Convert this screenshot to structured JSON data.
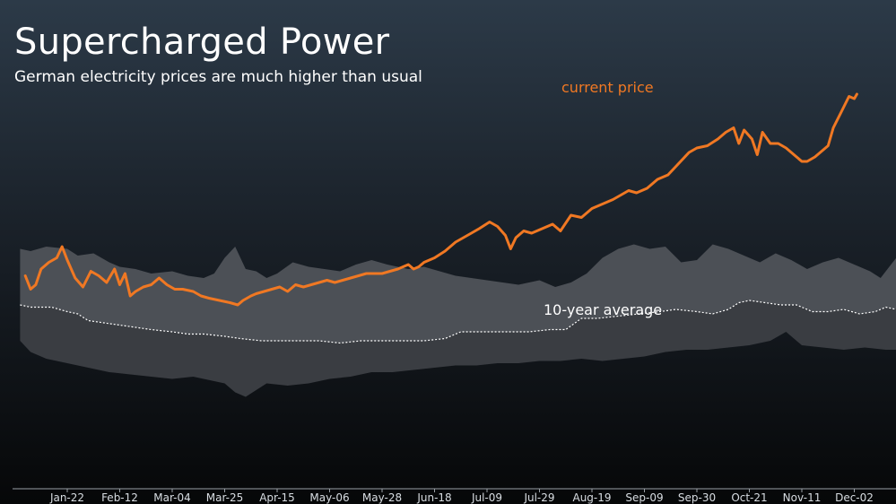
{
  "title": "Supercharged Power",
  "subtitle": "German electricity prices are much higher than usual",
  "colors": {
    "current_price": "#f07823",
    "band_upper": "#4c5056",
    "band_lower": "#3a3d42",
    "average": "#ffffff"
  },
  "chart_data": {
    "type": "area",
    "categories": [
      "Jan-22",
      "Feb-12",
      "Mar-04",
      "Mar-25",
      "Apr-15",
      "May-06",
      "May-28",
      "Jun-18",
      "Jul-09",
      "Jul-29",
      "Aug-19",
      "Sep-09",
      "Sep-30",
      "Oct-21",
      "Nov-11",
      "Dec-02"
    ],
    "x_range": [
      -0.9,
      16
    ],
    "y_range": [
      0,
      100
    ],
    "grid": false,
    "annotations": [
      {
        "text": "current price",
        "series": "current"
      },
      {
        "text": "10-year average",
        "series": "average"
      }
    ],
    "series": {
      "band_upper": [
        [
          -0.9,
          79
        ],
        [
          -0.7,
          78
        ],
        [
          -0.4,
          80
        ],
        [
          0,
          79
        ],
        [
          0.2,
          76
        ],
        [
          0.5,
          77
        ],
        [
          0.8,
          73
        ],
        [
          1,
          71
        ],
        [
          1.3,
          70
        ],
        [
          1.6,
          68
        ],
        [
          2,
          69
        ],
        [
          2.3,
          67
        ],
        [
          2.6,
          66
        ],
        [
          2.8,
          68
        ],
        [
          3,
          75
        ],
        [
          3.2,
          80
        ],
        [
          3.4,
          70
        ],
        [
          3.6,
          69
        ],
        [
          3.8,
          66
        ],
        [
          4,
          68
        ],
        [
          4.3,
          73
        ],
        [
          4.6,
          71
        ],
        [
          4.9,
          70
        ],
        [
          5.2,
          69
        ],
        [
          5.5,
          72
        ],
        [
          5.8,
          74
        ],
        [
          6.1,
          72
        ],
        [
          6.5,
          70
        ],
        [
          6.8,
          71
        ],
        [
          7.1,
          69
        ],
        [
          7.4,
          67
        ],
        [
          7.7,
          66
        ],
        [
          8,
          65
        ],
        [
          8.3,
          64
        ],
        [
          8.6,
          63
        ],
        [
          9,
          65
        ],
        [
          9.3,
          62
        ],
        [
          9.6,
          64
        ],
        [
          9.9,
          68
        ],
        [
          10.2,
          75
        ],
        [
          10.5,
          79
        ],
        [
          10.8,
          81
        ],
        [
          11.1,
          79
        ],
        [
          11.4,
          80
        ],
        [
          11.7,
          73
        ],
        [
          12,
          74
        ],
        [
          12.3,
          81
        ],
        [
          12.6,
          79
        ],
        [
          12.9,
          76
        ],
        [
          13.2,
          73
        ],
        [
          13.5,
          77
        ],
        [
          13.8,
          74
        ],
        [
          14.1,
          70
        ],
        [
          14.4,
          73
        ],
        [
          14.7,
          75
        ],
        [
          15,
          72
        ],
        [
          15.3,
          69
        ],
        [
          15.5,
          66
        ],
        [
          15.7,
          72
        ],
        [
          15.9,
          78
        ],
        [
          16,
          80
        ]
      ],
      "band_lower": [
        [
          -0.9,
          38
        ],
        [
          -0.7,
          33
        ],
        [
          -0.4,
          30
        ],
        [
          0,
          28
        ],
        [
          0.4,
          26
        ],
        [
          0.8,
          24
        ],
        [
          1.2,
          23
        ],
        [
          1.6,
          22
        ],
        [
          2,
          21
        ],
        [
          2.4,
          22
        ],
        [
          2.8,
          20
        ],
        [
          3,
          19
        ],
        [
          3.2,
          15
        ],
        [
          3.4,
          13
        ],
        [
          3.6,
          16
        ],
        [
          3.8,
          19
        ],
        [
          4.2,
          18
        ],
        [
          4.6,
          19
        ],
        [
          5,
          21
        ],
        [
          5.4,
          22
        ],
        [
          5.8,
          24
        ],
        [
          6.2,
          24
        ],
        [
          6.6,
          25
        ],
        [
          7,
          26
        ],
        [
          7.4,
          27
        ],
        [
          7.8,
          27
        ],
        [
          8.2,
          28
        ],
        [
          8.6,
          28
        ],
        [
          9,
          29
        ],
        [
          9.4,
          29
        ],
        [
          9.8,
          30
        ],
        [
          10.2,
          29
        ],
        [
          10.6,
          30
        ],
        [
          11,
          31
        ],
        [
          11.4,
          33
        ],
        [
          11.8,
          34
        ],
        [
          12.2,
          34
        ],
        [
          12.6,
          35
        ],
        [
          13,
          36
        ],
        [
          13.4,
          38
        ],
        [
          13.7,
          42
        ],
        [
          14,
          36
        ],
        [
          14.4,
          35
        ],
        [
          14.8,
          34
        ],
        [
          15.2,
          35
        ],
        [
          15.6,
          34
        ],
        [
          16,
          34
        ]
      ],
      "average": [
        [
          -0.9,
          54
        ],
        [
          -0.7,
          53
        ],
        [
          -0.3,
          53
        ],
        [
          0,
          51
        ],
        [
          0.2,
          50
        ],
        [
          0.4,
          47
        ],
        [
          0.7,
          46
        ],
        [
          1,
          45
        ],
        [
          1.3,
          44
        ],
        [
          1.6,
          43
        ],
        [
          2,
          42
        ],
        [
          2.3,
          41
        ],
        [
          2.6,
          41
        ],
        [
          3,
          40
        ],
        [
          3.3,
          39
        ],
        [
          3.7,
          38
        ],
        [
          4,
          38
        ],
        [
          4.4,
          38
        ],
        [
          4.8,
          38
        ],
        [
          5.2,
          37
        ],
        [
          5.6,
          38
        ],
        [
          6,
          38
        ],
        [
          6.4,
          38
        ],
        [
          6.8,
          38
        ],
        [
          7.2,
          39
        ],
        [
          7.5,
          42
        ],
        [
          8,
          42
        ],
        [
          8.4,
          42
        ],
        [
          8.8,
          42
        ],
        [
          9.2,
          43
        ],
        [
          9.5,
          43
        ],
        [
          9.8,
          48
        ],
        [
          10.1,
          48
        ],
        [
          10.5,
          49
        ],
        [
          10.9,
          50
        ],
        [
          11.3,
          51
        ],
        [
          11.6,
          52
        ],
        [
          12,
          51
        ],
        [
          12.3,
          50
        ],
        [
          12.6,
          52
        ],
        [
          12.8,
          55
        ],
        [
          13,
          56
        ],
        [
          13.3,
          55
        ],
        [
          13.6,
          54
        ],
        [
          13.9,
          54
        ],
        [
          14.2,
          51
        ],
        [
          14.5,
          51
        ],
        [
          14.8,
          52
        ],
        [
          15.1,
          50
        ],
        [
          15.4,
          51
        ],
        [
          15.6,
          53
        ],
        [
          15.8,
          52
        ],
        [
          16,
          53
        ]
      ],
      "current": [
        [
          -0.8,
          67
        ],
        [
          -0.7,
          61
        ],
        [
          -0.6,
          63
        ],
        [
          -0.5,
          70
        ],
        [
          -0.35,
          73
        ],
        [
          -0.2,
          75
        ],
        [
          -0.1,
          80
        ],
        [
          0,
          74
        ],
        [
          0.15,
          66
        ],
        [
          0.3,
          62
        ],
        [
          0.45,
          69
        ],
        [
          0.6,
          67
        ],
        [
          0.75,
          64
        ],
        [
          0.9,
          70
        ],
        [
          1,
          63
        ],
        [
          1.1,
          68
        ],
        [
          1.2,
          58
        ],
        [
          1.3,
          60
        ],
        [
          1.45,
          62
        ],
        [
          1.6,
          63
        ],
        [
          1.75,
          66
        ],
        [
          1.9,
          63
        ],
        [
          2.05,
          61
        ],
        [
          2.2,
          61
        ],
        [
          2.4,
          60
        ],
        [
          2.55,
          58
        ],
        [
          2.7,
          57
        ],
        [
          2.9,
          56
        ],
        [
          3.1,
          55
        ],
        [
          3.25,
          54
        ],
        [
          3.35,
          56
        ],
        [
          3.5,
          58
        ],
        [
          3.6,
          59
        ],
        [
          3.75,
          60
        ],
        [
          3.9,
          61
        ],
        [
          4.05,
          62
        ],
        [
          4.2,
          60
        ],
        [
          4.35,
          63
        ],
        [
          4.5,
          62
        ],
        [
          4.65,
          63
        ],
        [
          4.8,
          64
        ],
        [
          4.95,
          65
        ],
        [
          5.1,
          64
        ],
        [
          5.25,
          65
        ],
        [
          5.4,
          66
        ],
        [
          5.55,
          67
        ],
        [
          5.7,
          68
        ],
        [
          5.85,
          68
        ],
        [
          6,
          68
        ],
        [
          6.15,
          69
        ],
        [
          6.3,
          70
        ],
        [
          6.4,
          71
        ],
        [
          6.5,
          72
        ],
        [
          6.6,
          70
        ],
        [
          6.7,
          71
        ],
        [
          6.8,
          73
        ],
        [
          7,
          75
        ],
        [
          7.2,
          78
        ],
        [
          7.4,
          82
        ],
        [
          7.55,
          84
        ],
        [
          7.7,
          86
        ],
        [
          7.85,
          88
        ],
        [
          8.05,
          91
        ],
        [
          8.2,
          89
        ],
        [
          8.35,
          85
        ],
        [
          8.45,
          79
        ],
        [
          8.55,
          84
        ],
        [
          8.7,
          87
        ],
        [
          8.85,
          86
        ],
        [
          9.05,
          88
        ],
        [
          9.25,
          90
        ],
        [
          9.4,
          87
        ],
        [
          9.6,
          94
        ],
        [
          9.8,
          93
        ],
        [
          10,
          97
        ],
        [
          10.2,
          99
        ],
        [
          10.4,
          101
        ],
        [
          10.55,
          103
        ],
        [
          10.7,
          105
        ],
        [
          10.85,
          104
        ],
        [
          11.05,
          106
        ],
        [
          11.25,
          110
        ],
        [
          11.45,
          112
        ],
        [
          11.65,
          117
        ],
        [
          11.85,
          122
        ],
        [
          12,
          124
        ],
        [
          12.2,
          125
        ],
        [
          12.4,
          128
        ],
        [
          12.55,
          131
        ],
        [
          12.7,
          133
        ],
        [
          12.8,
          126
        ],
        [
          12.9,
          132
        ],
        [
          13.05,
          128
        ],
        [
          13.15,
          121
        ],
        [
          13.25,
          131
        ],
        [
          13.4,
          126
        ],
        [
          13.55,
          126
        ],
        [
          13.7,
          124
        ],
        [
          13.85,
          121
        ],
        [
          14,
          118
        ],
        [
          14.1,
          118
        ],
        [
          14.25,
          120
        ],
        [
          14.35,
          122
        ],
        [
          14.5,
          125
        ],
        [
          14.6,
          133
        ],
        [
          14.75,
          140
        ],
        [
          14.9,
          147
        ],
        [
          15,
          146
        ],
        [
          15.05,
          148
        ]
      ]
    }
  }
}
